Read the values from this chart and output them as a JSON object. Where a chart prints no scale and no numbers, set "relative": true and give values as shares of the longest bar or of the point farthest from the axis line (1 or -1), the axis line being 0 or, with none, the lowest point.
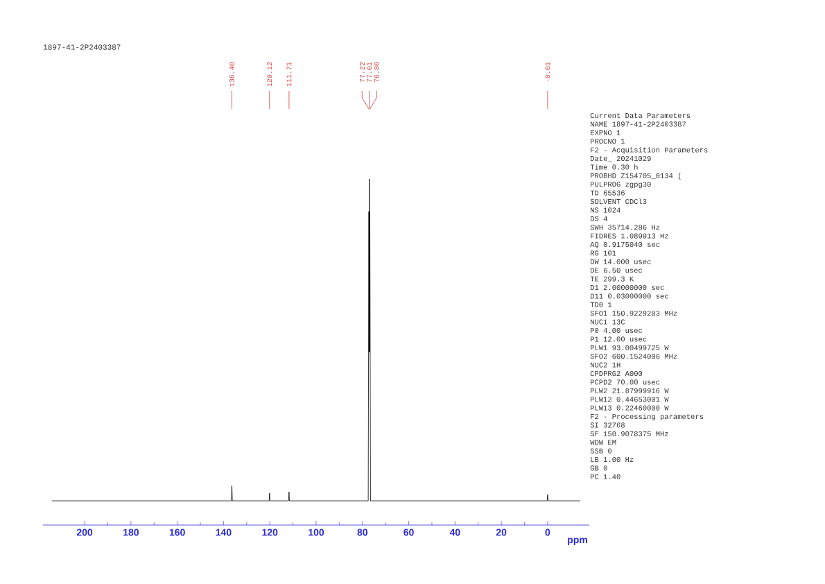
{
  "chart_data": {
    "type": "line",
    "relative": true,
    "title": "1897-41-2P2403387",
    "xlabel": "ppm",
    "xlim": [
      218,
      -18
    ],
    "xticks": [
      200,
      180,
      160,
      140,
      120,
      100,
      80,
      60,
      40,
      20,
      0
    ],
    "series": [
      {
        "color": "#000000",
        "x": [
          214,
          136.6,
          136.4,
          136.2,
          120.3,
          120.12,
          119.95,
          111.9,
          111.71,
          111.5,
          77.5,
          77.22,
          77.12,
          77.01,
          76.91,
          76.8,
          76.5,
          0.2,
          -0.01,
          -0.2,
          -14
        ],
        "values": [
          0.07,
          0.07,
          0.114,
          0.07,
          0.07,
          0.092,
          0.07,
          0.07,
          0.096,
          0.07,
          0.07,
          0.906,
          0.5,
          1.0,
          0.5,
          0.906,
          0.07,
          0.07,
          0.088,
          0.07,
          0.07
        ]
      }
    ],
    "annotations": [
      {
        "text": "136.40",
        "x": 136.4
      },
      {
        "text": "120.12",
        "x": 120.12
      },
      {
        "text": "111.71",
        "x": 111.71
      },
      "77.22",
      "77.01",
      "76.80",
      "-0.01",
      "Current Data Parameters",
      "NAME 1897-41-2P2403387",
      "EXPNO 1",
      "PROCNO 1",
      "F2 - Acquisition Parameters",
      "Date_ 20241029",
      "Time 0.30 h",
      "PROBHD Z154705_0134 (",
      "PULPROG zgpg30",
      "TD 65536",
      "SOLVENT CDCl3",
      "NS 1024",
      "DS 4",
      "SWH 35714.286 Hz",
      "FIDRES 1.089913 Hz",
      "AQ 0.9175040 sec",
      "RG 101",
      "DW 14.000 usec",
      "DE 6.50 usec",
      "TE 299.3 K",
      "D1 2.00000000 sec",
      "D11 0.03000000 sec",
      "TD0 1",
      "SFO1 150.9229283 MHz",
      "NUC1 13C",
      "P0 4.00 usec",
      "P1 12.00 usec",
      "PLW1 93.00499725 W",
      "SFO2 600.1524006 MHz",
      "NUC2 1H",
      "CPDPRG2 A000",
      "PCPD2 70.00 usec",
      "PLW2 21.87999916 W",
      "PLW12 0.44653001 W",
      "PLW13 0.22460000 W",
      "F2 - Processing parameters",
      "SI 32768",
      "SF 150.9078375 MHz",
      "WDW EM",
      "SSB 0",
      "LB 1.00 Hz",
      "GB 0",
      "PC 1.40"
    ]
  }
}
